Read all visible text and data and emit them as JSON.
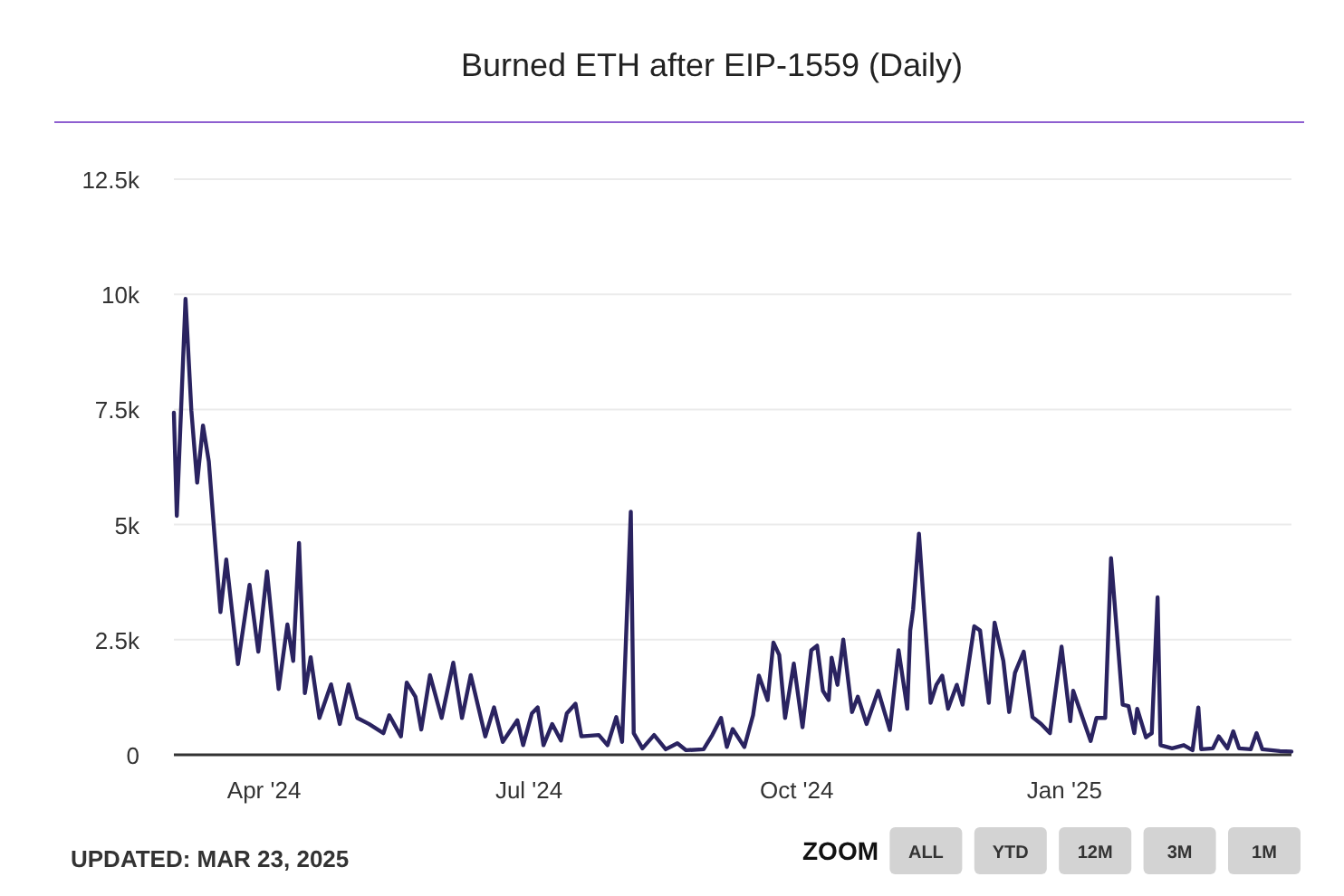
{
  "chart_data": {
    "type": "line",
    "title": "Burned ETH after EIP-1559 (Daily)",
    "annotations": [
      "UPDATED: MAR 23, 2025",
      "ZOOM",
      "ALL",
      "YTD",
      "12M",
      "3M",
      "1M"
    ],
    "xlim": [
      "2024-03-01",
      "2025-03-20"
    ],
    "xticks": [
      {
        "value": "2024-04-01",
        "label": "Apr '24"
      },
      {
        "value": "2024-07-01",
        "label": "Jul '24"
      },
      {
        "value": "2024-10-01",
        "label": "Oct '24"
      },
      {
        "value": "2025-01-01",
        "label": "Jan '25"
      }
    ],
    "ylim": [
      0,
      12500
    ],
    "yticks": [
      0,
      {
        "value": 2500,
        "label": "2.5k"
      },
      {
        "value": 5000,
        "label": "5k"
      },
      {
        "value": 7500,
        "label": "7.5k"
      },
      {
        "value": 10000,
        "label": "10k"
      },
      {
        "value": 12500,
        "label": "12.5k"
      }
    ],
    "grid": "y",
    "marker": "none",
    "line_style": "solid",
    "series": [
      {
        "color": "#2a2360",
        "x": [
          "2024-03-01",
          "2024-03-02",
          "2024-03-05",
          "2024-03-07",
          "2024-03-09",
          "2024-03-11",
          "2024-03-13",
          "2024-03-17",
          "2024-03-19",
          "2024-03-23",
          "2024-03-27",
          "2024-03-30",
          "2024-04-02",
          "2024-04-06",
          "2024-04-09",
          "2024-04-11",
          "2024-04-13",
          "2024-04-15",
          "2024-04-17",
          "2024-04-20",
          "2024-04-24",
          "2024-04-27",
          "2024-04-30",
          "2024-05-03",
          "2024-05-07",
          "2024-05-12",
          "2024-05-14",
          "2024-05-18",
          "2024-05-20",
          "2024-05-23",
          "2024-05-25",
          "2024-05-28",
          "2024-06-01",
          "2024-06-05",
          "2024-06-08",
          "2024-06-11",
          "2024-06-16",
          "2024-06-19",
          "2024-06-22",
          "2024-06-27",
          "2024-06-29",
          "2024-07-02",
          "2024-07-04",
          "2024-07-06",
          "2024-07-09",
          "2024-07-12",
          "2024-07-14",
          "2024-07-17",
          "2024-07-19",
          "2024-07-25",
          "2024-07-28",
          "2024-07-31",
          "2024-08-02",
          "2024-08-05",
          "2024-08-06",
          "2024-08-09",
          "2024-08-13",
          "2024-08-17",
          "2024-08-21",
          "2024-08-24",
          "2024-08-30",
          "2024-09-02",
          "2024-09-05",
          "2024-09-07",
          "2024-09-09",
          "2024-09-13",
          "2024-09-16",
          "2024-09-18",
          "2024-09-21",
          "2024-09-23",
          "2024-09-25",
          "2024-09-27",
          "2024-09-30",
          "2024-10-03",
          "2024-10-06",
          "2024-10-08",
          "2024-10-10",
          "2024-10-12",
          "2024-10-13",
          "2024-10-15",
          "2024-10-17",
          "2024-10-20",
          "2024-10-22",
          "2024-10-25",
          "2024-10-29",
          "2024-11-02",
          "2024-11-05",
          "2024-11-08",
          "2024-11-09",
          "2024-11-10",
          "2024-11-12",
          "2024-11-16",
          "2024-11-18",
          "2024-11-20",
          "2024-11-22",
          "2024-11-25",
          "2024-11-27",
          "2024-12-01",
          "2024-12-03",
          "2024-12-06",
          "2024-12-08",
          "2024-12-11",
          "2024-12-13",
          "2024-12-15",
          "2024-12-18",
          "2024-12-21",
          "2024-12-24",
          "2024-12-27",
          "2024-12-31",
          "2025-01-03",
          "2025-01-04",
          "2025-01-10",
          "2025-01-12",
          "2025-01-15",
          "2025-01-17",
          "2025-01-21",
          "2025-01-23",
          "2025-01-25",
          "2025-01-26",
          "2025-01-29",
          "2025-01-31",
          "2025-02-02",
          "2025-02-03",
          "2025-02-07",
          "2025-02-11",
          "2025-02-14",
          "2025-02-16",
          "2025-02-17",
          "2025-02-21",
          "2025-02-23",
          "2025-02-26",
          "2025-02-28",
          "2025-03-02",
          "2025-03-06",
          "2025-03-08",
          "2025-03-10",
          "2025-03-16",
          "2025-03-20"
        ],
        "values": [
          7430,
          5190,
          9900,
          7480,
          5910,
          7150,
          6370,
          3100,
          4240,
          1970,
          3690,
          2240,
          3980,
          1430,
          2830,
          2040,
          4600,
          1340,
          2120,
          800,
          1530,
          670,
          1530,
          800,
          670,
          470,
          860,
          400,
          1570,
          1260,
          550,
          1730,
          800,
          2000,
          800,
          1730,
          400,
          1030,
          280,
          750,
          210,
          900,
          1030,
          210,
          670,
          310,
          900,
          1110,
          400,
          430,
          210,
          820,
          280,
          5280,
          470,
          140,
          430,
          120,
          250,
          100,
          120,
          430,
          800,
          170,
          560,
          170,
          860,
          1720,
          1190,
          2440,
          2170,
          800,
          1980,
          600,
          2270,
          2370,
          1390,
          1190,
          2110,
          1520,
          2500,
          930,
          1260,
          670,
          1390,
          540,
          2270,
          1000,
          2700,
          3160,
          4800,
          1130,
          1520,
          1720,
          1000,
          1520,
          1090,
          2790,
          2700,
          1130,
          2870,
          2040,
          930,
          1780,
          2240,
          820,
          670,
          470,
          2350,
          730,
          1390,
          300,
          800,
          800,
          4270,
          1090,
          1060,
          470,
          1000,
          380,
          470,
          3420,
          210,
          140,
          210,
          100,
          1030,
          120,
          140,
          400,
          140,
          510,
          140,
          120,
          470,
          120,
          80,
          70
        ]
      }
    ]
  }
}
